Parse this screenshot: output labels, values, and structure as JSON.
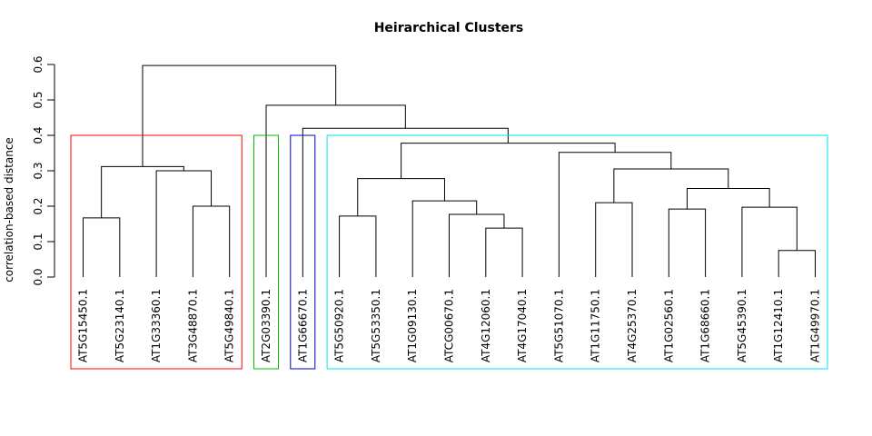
{
  "chart_data": {
    "type": "dendrogram",
    "title": "Heirarchical Clusters",
    "ylabel": "correlation-based distance",
    "ylim": [
      0,
      0.6
    ],
    "yticks": [
      "0.0",
      "0.1",
      "0.2",
      "0.3",
      "0.4",
      "0.5",
      "0.6"
    ],
    "leaves": [
      "AT5G15450.1",
      "AT5G23140.1",
      "AT1G33360.1",
      "AT3G48870.1",
      "AT5G49840.1",
      "AT2G03390.1",
      "AT1G66670.1",
      "AT5G50920.1",
      "AT5G53350.1",
      "AT1G09130.1",
      "ATCG00670.1",
      "AT4G12060.1",
      "AT4G17040.1",
      "AT5G51070.1",
      "AT1G11750.1",
      "AT4G25370.1",
      "AT1G02560.1",
      "AT1G68660.1",
      "AT5G45390.1",
      "AT1G12410.1",
      "AT1G49970.1"
    ],
    "merges": [
      {
        "a": "L19",
        "b": "L20",
        "height": 0.075
      },
      {
        "a": "L11",
        "b": "L12",
        "height": 0.138
      },
      {
        "a": "L0",
        "b": "L1",
        "height": 0.167
      },
      {
        "a": "L7",
        "b": "L8",
        "height": 0.172
      },
      {
        "a": "L10",
        "b": "N1",
        "height": 0.177
      },
      {
        "a": "L16",
        "b": "L17",
        "height": 0.192
      },
      {
        "a": "L18",
        "b": "N0",
        "height": 0.197
      },
      {
        "a": "L3",
        "b": "L4",
        "height": 0.2
      },
      {
        "a": "L14",
        "b": "L15",
        "height": 0.21
      },
      {
        "a": "L9",
        "b": "N4",
        "height": 0.215
      },
      {
        "a": "N5",
        "b": "N6",
        "height": 0.25
      },
      {
        "a": "N3",
        "b": "N9",
        "height": 0.278
      },
      {
        "a": "L2",
        "b": "N7",
        "height": 0.3
      },
      {
        "a": "N8",
        "b": "N10",
        "height": 0.305
      },
      {
        "a": "N2",
        "b": "N12",
        "height": 0.312
      },
      {
        "a": "L13",
        "b": "N13",
        "height": 0.352
      },
      {
        "a": "N11",
        "b": "N15",
        "height": 0.378
      },
      {
        "a": "L6",
        "b": "N16",
        "height": 0.42
      },
      {
        "a": "L5",
        "b": "N17",
        "height": 0.485
      },
      {
        "a": "N14",
        "b": "N18",
        "height": 0.597
      }
    ],
    "clusters": [
      {
        "from": 0,
        "to": 4,
        "color": "#ff0000"
      },
      {
        "from": 5,
        "to": 5,
        "color": "#00bb00"
      },
      {
        "from": 6,
        "to": 6,
        "color": "#0000cc"
      },
      {
        "from": 7,
        "to": 20,
        "color": "#00e5ee"
      }
    ],
    "cut_height": 0.4,
    "grid": false,
    "legend": "none"
  }
}
